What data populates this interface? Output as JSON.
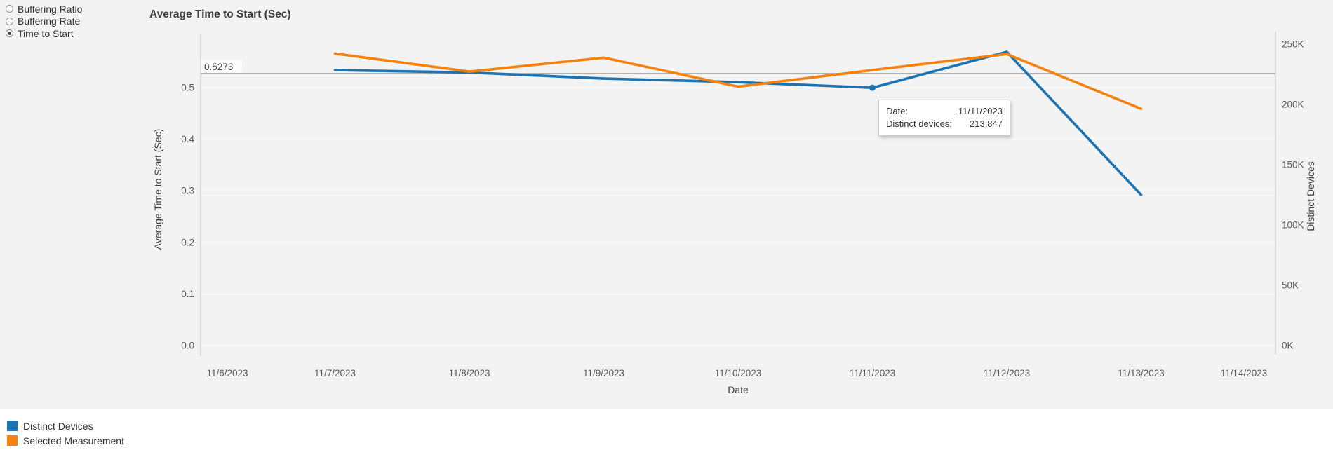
{
  "controls": {
    "items": [
      {
        "label": "Buffering Ratio",
        "selected": false
      },
      {
        "label": "Buffering Rate",
        "selected": false
      },
      {
        "label": "Time to Start",
        "selected": true
      }
    ]
  },
  "chart_data": {
    "type": "line",
    "title": "Average Time to Start (Sec)",
    "xlabel": "Date",
    "x_categories": [
      "11/6/2023",
      "11/7/2023",
      "11/8/2023",
      "11/9/2023",
      "11/10/2023",
      "11/11/2023",
      "11/12/2023",
      "11/13/2023",
      "11/14/2023"
    ],
    "left_axis": {
      "label": "Average Time to Start (Sec)",
      "ticks": [
        0.0,
        0.1,
        0.2,
        0.3,
        0.4,
        0.5
      ],
      "tick_labels": [
        "0.0",
        "0.1",
        "0.2",
        "0.3",
        "0.4",
        "0.5"
      ],
      "range": [
        0,
        0.605
      ]
    },
    "right_axis": {
      "label": "Distinct Devices",
      "ticks": [
        0,
        50000,
        100000,
        150000,
        200000,
        250000
      ],
      "tick_labels": [
        "0K",
        "50K",
        "100K",
        "150K",
        "200K",
        "250K"
      ],
      "range": [
        0,
        250000
      ]
    },
    "reference_line": {
      "value": 0.5273,
      "label": "0.5273",
      "axis": "left"
    },
    "grid": "horizontal-faint",
    "legend_position": "bottom-left",
    "series": [
      {
        "name": "Distinct Devices",
        "axis": "right",
        "color": "#1c73b1",
        "x_start_index": 1,
        "x": [
          "11/7/2023",
          "11/8/2023",
          "11/9/2023",
          "11/10/2023",
          "11/11/2023",
          "11/12/2023",
          "11/13/2023"
        ],
        "values": [
          228500,
          226500,
          221500,
          218500,
          213847,
          243600,
          125000
        ],
        "marker_index": 4
      },
      {
        "name": "Selected Measurement",
        "axis": "left",
        "color": "#f5820d",
        "x_start_index": 1,
        "x": [
          "11/7/2023",
          "11/8/2023",
          "11/9/2023",
          "11/10/2023",
          "11/11/2023",
          "11/12/2023",
          "11/13/2023"
        ],
        "values": [
          0.566,
          0.531,
          0.558,
          0.502,
          0.534,
          0.565,
          0.459
        ]
      }
    ]
  },
  "tooltip": {
    "rows": [
      {
        "label": "Date:",
        "value": "11/11/2023"
      },
      {
        "label": "Distinct devices:",
        "value": "213,847"
      }
    ]
  },
  "legend": {
    "items": [
      {
        "label": "Distinct Devices",
        "color": "#1c73b1"
      },
      {
        "label": "Selected Measurement",
        "color": "#f5820d"
      }
    ]
  },
  "colors": {
    "plot_bg": "#f3f3f3",
    "axis": "#cccccc",
    "ref_line": "#a8a8a8",
    "tick_text": "#595959",
    "title_text": "#3f3f3f"
  }
}
